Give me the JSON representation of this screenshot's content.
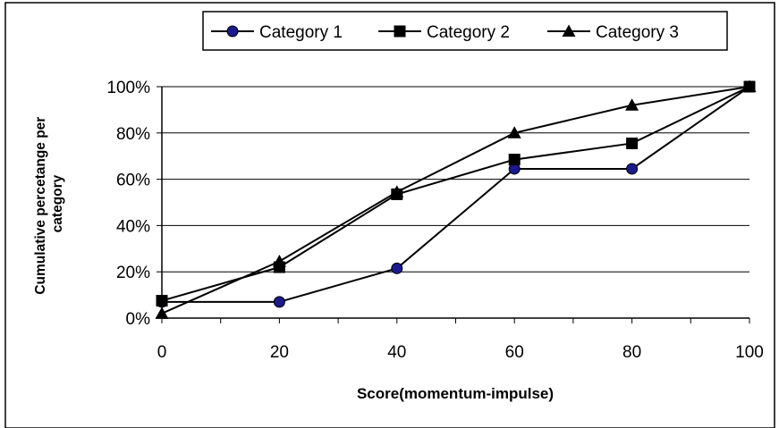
{
  "chart_data": {
    "type": "line",
    "xlabel": "Score(momentum-impulse)",
    "ylabel_lines": [
      "Cumulative percetange per",
      "category"
    ],
    "x": [
      0,
      20,
      40,
      60,
      80,
      100
    ],
    "x_ticks": [
      "0",
      "20",
      "40",
      "60",
      "80",
      "100"
    ],
    "xlim": [
      0,
      100
    ],
    "ylim": [
      0,
      100
    ],
    "y_ticks": [
      "0%",
      "20%",
      "40%",
      "60%",
      "80%",
      "100%"
    ],
    "grid": "horizontal",
    "legend_position": "top",
    "series": [
      {
        "name": "Category 1",
        "marker": "circle",
        "color": "#000000",
        "marker_fill": "#1a1a8c",
        "values": [
          7,
          7,
          21.5,
          64.5,
          64.5,
          100
        ]
      },
      {
        "name": "Category 2",
        "marker": "square",
        "color": "#000000",
        "marker_fill": "#000000",
        "values": [
          7.5,
          22,
          53.5,
          68.5,
          75.5,
          100
        ]
      },
      {
        "name": "Category 3",
        "marker": "triangle",
        "color": "#000000",
        "marker_fill": "#000000",
        "values": [
          2,
          24.5,
          54.5,
          80,
          92,
          100
        ]
      }
    ]
  }
}
